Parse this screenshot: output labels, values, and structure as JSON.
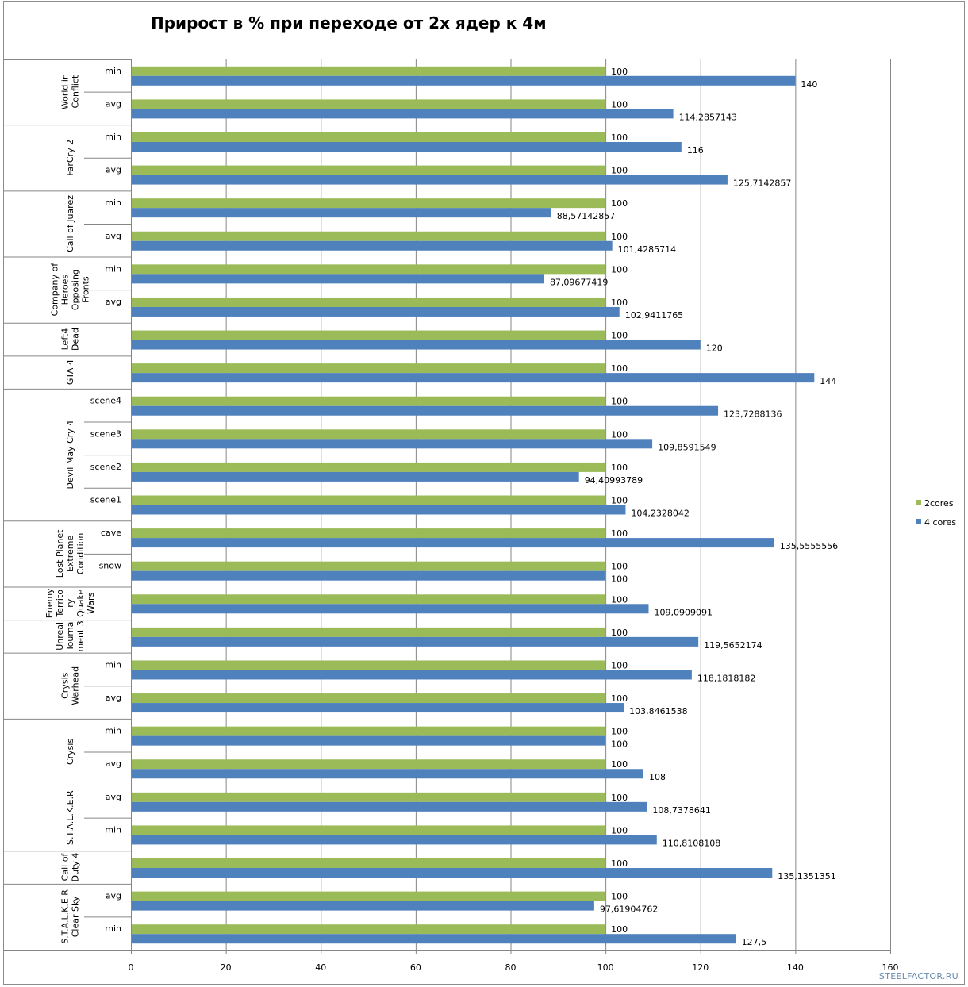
{
  "chart_data": {
    "type": "bar",
    "orientation": "horizontal",
    "title": "Прирост в % при переходе от 2х ядер к 4м",
    "xlabel": "",
    "ylabel": "",
    "xlim": [
      0,
      160
    ],
    "xticks": [
      0,
      20,
      40,
      60,
      80,
      100,
      120,
      140,
      160
    ],
    "grid": true,
    "legend_position": "right",
    "colors": {
      "2cores": "#9bbb59",
      "4 cores": "#4f81bd"
    },
    "legend": [
      {
        "name": "2cores",
        "color": "#9bbb59"
      },
      {
        "name": "4 cores",
        "color": "#4f81bd"
      }
    ],
    "groups": [
      {
        "name": "World in Conflict",
        "lines": [
          "World in",
          "Conflict"
        ],
        "rows": [
          {
            "cat": "min",
            "v2": "100",
            "v4": "140"
          },
          {
            "cat": "avg",
            "v2": "100",
            "v4": "114,2857143"
          }
        ]
      },
      {
        "name": "FarCry 2",
        "lines": [
          "FarCry 2"
        ],
        "rows": [
          {
            "cat": "min",
            "v2": "100",
            "v4": "116"
          },
          {
            "cat": "avg",
            "v2": "100",
            "v4": "125,7142857"
          }
        ]
      },
      {
        "name": "Call of Juarez",
        "lines": [
          "Call of Juarez"
        ],
        "rows": [
          {
            "cat": "min",
            "v2": "100",
            "v4": "88,57142857"
          },
          {
            "cat": "avg",
            "v2": "100",
            "v4": "101,4285714"
          }
        ]
      },
      {
        "name": "Company of Heroes Opposing Fronts",
        "lines": [
          "Company of",
          "Heroes",
          "Opposing",
          "Fronts"
        ],
        "rows": [
          {
            "cat": "min",
            "v2": "100",
            "v4": "87,09677419"
          },
          {
            "cat": "avg",
            "v2": "100",
            "v4": "102,9411765"
          }
        ]
      },
      {
        "name": "Left4 Dead",
        "lines": [
          "Left4",
          "Dead"
        ],
        "rows": [
          {
            "cat": "",
            "v2": "100",
            "v4": "120"
          }
        ]
      },
      {
        "name": "GTA 4",
        "lines": [
          "GTA 4"
        ],
        "rows": [
          {
            "cat": "",
            "v2": "100",
            "v4": "144"
          }
        ]
      },
      {
        "name": "Devil May Cry 4",
        "lines": [
          "Devil May Cry 4"
        ],
        "rows": [
          {
            "cat": "scene4",
            "v2": "100",
            "v4": "123,7288136"
          },
          {
            "cat": "scene3",
            "v2": "100",
            "v4": "109,8591549"
          },
          {
            "cat": "scene2",
            "v2": "100",
            "v4": "94,40993789"
          },
          {
            "cat": "scene1",
            "v2": "100",
            "v4": "104,2328042"
          }
        ]
      },
      {
        "name": "Lost Planet Extreme Condition",
        "lines": [
          "Lost Planet",
          "Extreme",
          "Condition"
        ],
        "rows": [
          {
            "cat": "cave",
            "v2": "100",
            "v4": "135,5555556"
          },
          {
            "cat": "snow",
            "v2": "100",
            "v4": "100"
          }
        ]
      },
      {
        "name": "Enemy Territory Quake Wars",
        "lines": [
          "Enemy",
          "Territo",
          "ry",
          "Quake",
          "Wars"
        ],
        "rows": [
          {
            "cat": "",
            "v2": "100",
            "v4": "109,0909091"
          }
        ]
      },
      {
        "name": "Unreal Tournament 3",
        "lines": [
          "Unreal",
          "Tourna",
          "ment 3"
        ],
        "rows": [
          {
            "cat": "",
            "v2": "100",
            "v4": "119,5652174"
          }
        ]
      },
      {
        "name": "Crysis Warhead",
        "lines": [
          "Crysis",
          "Warhead"
        ],
        "rows": [
          {
            "cat": "min",
            "v2": "100",
            "v4": "118,1818182"
          },
          {
            "cat": "avg",
            "v2": "100",
            "v4": "103,8461538"
          }
        ]
      },
      {
        "name": "Crysis",
        "lines": [
          "Crysis"
        ],
        "rows": [
          {
            "cat": "min",
            "v2": "100",
            "v4": "100"
          },
          {
            "cat": "avg",
            "v2": "100",
            "v4": "108"
          }
        ]
      },
      {
        "name": "S.T.A.L.K.E.R",
        "lines": [
          "S.T.A.L.K.E.R"
        ],
        "rows": [
          {
            "cat": "avg",
            "v2": "100",
            "v4": "108,7378641"
          },
          {
            "cat": "min",
            "v2": "100",
            "v4": "110,8108108"
          }
        ]
      },
      {
        "name": "Call of Duty 4",
        "lines": [
          "Call of",
          "Duty 4"
        ],
        "rows": [
          {
            "cat": "",
            "v2": "100",
            "v4": "135,1351351"
          }
        ]
      },
      {
        "name": "S.T.A.L.K.E.R Clear Sky",
        "lines": [
          "S.T.A.L.K.E.R",
          "Clear Sky"
        ],
        "rows": [
          {
            "cat": "avg",
            "v2": "100",
            "v4": "97,61904762"
          },
          {
            "cat": "min",
            "v2": "100",
            "v4": "127,5"
          }
        ]
      }
    ]
  },
  "watermark": "STEELFACTOR.RU"
}
